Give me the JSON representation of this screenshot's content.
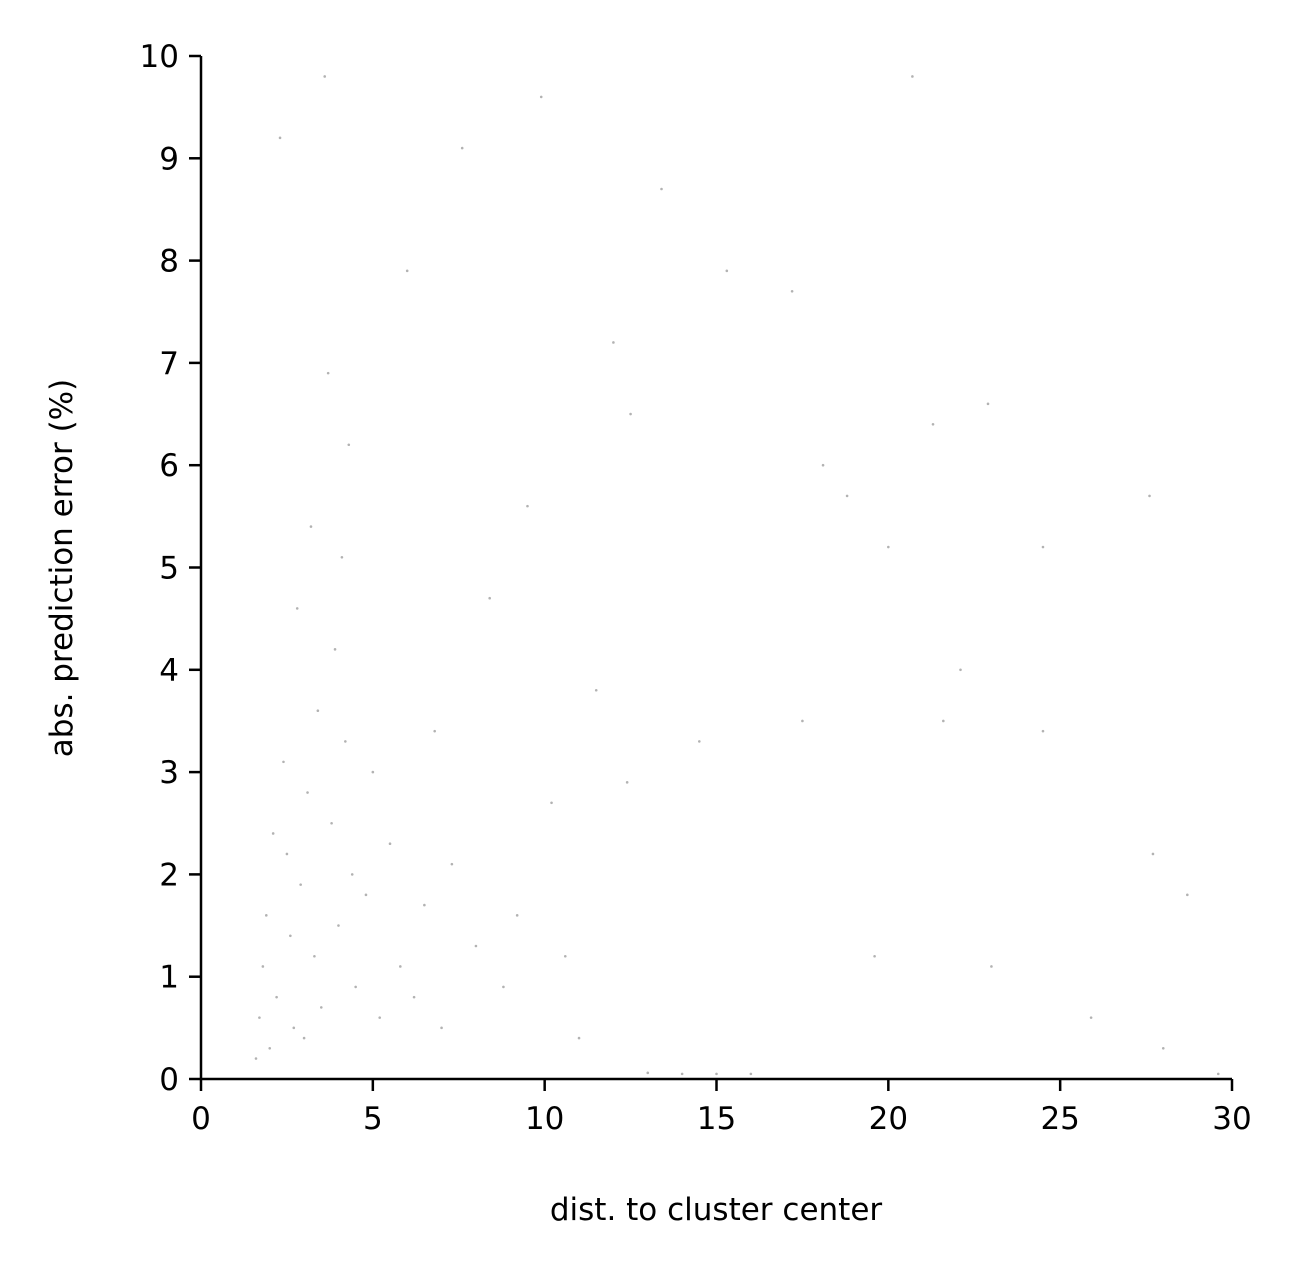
{
  "chart_data": {
    "type": "scatter",
    "title": "",
    "xlabel": "dist. to cluster center",
    "ylabel": "abs. prediction error (%)",
    "xlim": [
      0,
      30
    ],
    "ylim": [
      0,
      10
    ],
    "x_ticks": [
      0,
      5,
      10,
      15,
      20,
      25,
      30
    ],
    "y_ticks": [
      0,
      1,
      2,
      3,
      4,
      5,
      6,
      7,
      8,
      9,
      10
    ],
    "x_tick_labels": [
      "0",
      "5",
      "10",
      "15",
      "20",
      "25",
      "30"
    ],
    "y_tick_labels": [
      "0",
      "1",
      "2",
      "3",
      "4",
      "5",
      "6",
      "7",
      "8",
      "9",
      "10"
    ],
    "grid": false,
    "legend": "none",
    "point_color": "#000000",
    "point_alpha": 0.3,
    "spines": [
      "left",
      "bottom"
    ],
    "series": [
      {
        "points": [
          [
            1.6,
            0.2
          ],
          [
            1.7,
            0.6
          ],
          [
            1.8,
            1.1
          ],
          [
            1.9,
            1.6
          ],
          [
            2.0,
            0.3
          ],
          [
            2.1,
            2.4
          ],
          [
            2.2,
            0.8
          ],
          [
            2.3,
            9.2
          ],
          [
            2.4,
            3.1
          ],
          [
            2.5,
            2.2
          ],
          [
            2.6,
            1.4
          ],
          [
            2.7,
            0.5
          ],
          [
            2.8,
            4.6
          ],
          [
            2.9,
            1.9
          ],
          [
            3.0,
            0.4
          ],
          [
            3.1,
            2.8
          ],
          [
            3.2,
            5.4
          ],
          [
            3.3,
            1.2
          ],
          [
            3.4,
            3.6
          ],
          [
            3.5,
            0.7
          ],
          [
            3.6,
            9.8
          ],
          [
            3.7,
            6.9
          ],
          [
            3.8,
            2.5
          ],
          [
            3.9,
            4.2
          ],
          [
            4.0,
            1.5
          ],
          [
            4.1,
            5.1
          ],
          [
            4.2,
            3.3
          ],
          [
            4.3,
            6.2
          ],
          [
            4.4,
            2.0
          ],
          [
            4.5,
            0.9
          ],
          [
            4.8,
            1.8
          ],
          [
            5.0,
            3.0
          ],
          [
            5.2,
            0.6
          ],
          [
            5.5,
            2.3
          ],
          [
            5.8,
            1.1
          ],
          [
            6.0,
            7.9
          ],
          [
            6.2,
            0.8
          ],
          [
            6.5,
            1.7
          ],
          [
            6.8,
            3.4
          ],
          [
            7.0,
            0.5
          ],
          [
            7.3,
            2.1
          ],
          [
            7.6,
            9.1
          ],
          [
            8.0,
            1.3
          ],
          [
            8.4,
            4.7
          ],
          [
            8.8,
            0.9
          ],
          [
            9.2,
            1.6
          ],
          [
            9.5,
            5.6
          ],
          [
            9.9,
            9.6
          ],
          [
            10.2,
            2.7
          ],
          [
            10.6,
            1.2
          ],
          [
            11.0,
            0.4
          ],
          [
            11.5,
            3.8
          ],
          [
            12.0,
            7.2
          ],
          [
            12.4,
            2.9
          ],
          [
            12.5,
            6.5
          ],
          [
            13.0,
            0.06
          ],
          [
            13.4,
            8.7
          ],
          [
            14.0,
            0.05
          ],
          [
            14.5,
            3.3
          ],
          [
            15.0,
            0.05
          ],
          [
            15.3,
            7.9
          ],
          [
            16.0,
            0.05
          ],
          [
            17.2,
            7.7
          ],
          [
            17.5,
            3.5
          ],
          [
            18.1,
            6.0
          ],
          [
            18.8,
            5.7
          ],
          [
            19.6,
            1.2
          ],
          [
            20.0,
            5.2
          ],
          [
            20.7,
            9.8
          ],
          [
            21.3,
            6.4
          ],
          [
            21.6,
            3.5
          ],
          [
            22.1,
            4.0
          ],
          [
            22.9,
            6.6
          ],
          [
            23.0,
            1.1
          ],
          [
            24.5,
            5.2
          ],
          [
            24.5,
            3.4
          ],
          [
            25.9,
            0.6
          ],
          [
            27.6,
            5.7
          ],
          [
            27.7,
            2.2
          ],
          [
            28.0,
            0.3
          ],
          [
            28.7,
            1.8
          ],
          [
            29.6,
            0.05
          ]
        ]
      }
    ]
  }
}
